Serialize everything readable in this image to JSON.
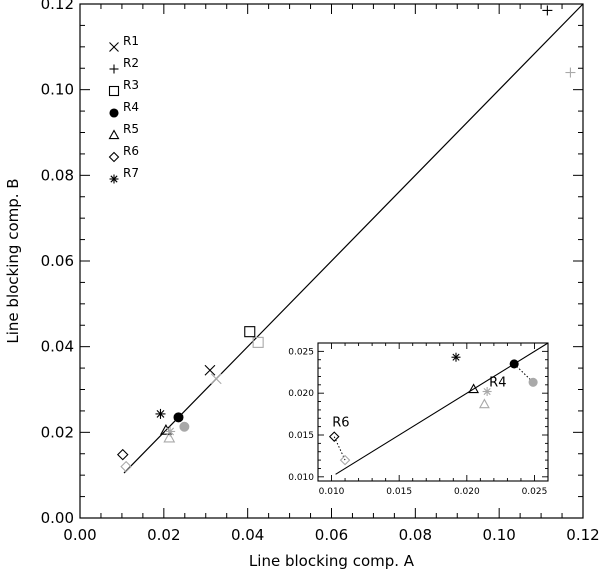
{
  "chart_data": [
    {
      "type": "scatter",
      "xlabel": "Line blocking comp. A",
      "ylabel": "Line blocking comp. B",
      "xlim": [
        0.0,
        0.12
      ],
      "ylim": [
        0.0,
        0.12
      ],
      "xticks": [
        "0.00",
        "0.02",
        "0.04",
        "0.06",
        "0.08",
        "0.10",
        "0.12"
      ],
      "yticks": [
        "0.00",
        "0.02",
        "0.04",
        "0.06",
        "0.08",
        "0.10",
        "0.12"
      ],
      "line": {
        "x": [
          0.0105,
          0.12
        ],
        "y": [
          0.0105,
          0.12
        ]
      },
      "legend": [
        {
          "label": "R1",
          "symbol": "x"
        },
        {
          "label": "R2",
          "symbol": "plus"
        },
        {
          "label": "R3",
          "symbol": "square"
        },
        {
          "label": "R4",
          "symbol": "circle"
        },
        {
          "label": "R5",
          "symbol": "triangle"
        },
        {
          "label": "R6",
          "symbol": "diamond"
        },
        {
          "label": "R7",
          "symbol": "asterisk"
        }
      ],
      "series": [
        {
          "symbol": "x",
          "black": [
            0.031,
            0.0345
          ],
          "grey": [
            0.0325,
            0.0325
          ]
        },
        {
          "symbol": "plus",
          "black": [
            0.1115,
            0.1185
          ],
          "grey": [
            0.117,
            0.104
          ]
        },
        {
          "symbol": "square",
          "black": [
            0.0405,
            0.0435
          ],
          "grey": [
            0.0425,
            0.041
          ]
        },
        {
          "symbol": "circle",
          "black": [
            0.0235,
            0.0235
          ],
          "grey": [
            0.0249,
            0.0213
          ]
        },
        {
          "symbol": "triangle",
          "black": [
            0.0205,
            0.0205
          ],
          "grey": [
            0.0213,
            0.0187
          ]
        },
        {
          "symbol": "diamond",
          "black": [
            0.0102,
            0.0148
          ],
          "grey": [
            0.011,
            0.012
          ]
        },
        {
          "symbol": "asterisk",
          "black": [
            0.0192,
            0.0243
          ],
          "grey": [
            0.0215,
            0.0202
          ]
        }
      ],
      "colors": {
        "black": "#000000",
        "grey": "#a9a9a9"
      }
    },
    {
      "type": "scatter",
      "xlim": [
        0.009,
        0.026
      ],
      "ylim": [
        0.0095,
        0.026
      ],
      "xticks": [
        "0.010",
        "0.015",
        "0.020",
        "0.025"
      ],
      "yticks": [
        "0.010",
        "0.015",
        "0.020",
        "0.025"
      ],
      "line": {
        "x": [
          0.0103,
          0.026
        ],
        "y": [
          0.0103,
          0.026
        ]
      },
      "annotations": [
        "R6",
        "R4"
      ]
    }
  ]
}
